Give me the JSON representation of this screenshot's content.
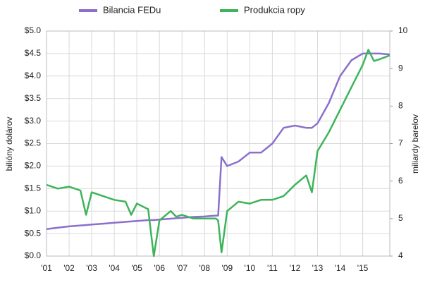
{
  "chart_data": {
    "type": "line",
    "x": [
      2001,
      2001.5,
      2002,
      2002.5,
      2002.75,
      2003,
      2003.5,
      2004,
      2004.5,
      2004.75,
      2005,
      2005.5,
      2005.75,
      2006,
      2006.5,
      2006.75,
      2007,
      2007.5,
      2008,
      2008.5,
      2008.6,
      2008.75,
      2009,
      2009.5,
      2010,
      2010.5,
      2011,
      2011.5,
      2012,
      2012.5,
      2012.75,
      2013,
      2013.5,
      2014,
      2014.5,
      2015,
      2015.25,
      2015.5,
      2015.75,
      2016.2
    ],
    "series": [
      {
        "name": "Bilancia FEDu",
        "color": "#8b6fcb",
        "axis": "y",
        "values": [
          0.6,
          0.63,
          0.66,
          0.68,
          0.69,
          0.7,
          0.72,
          0.74,
          0.76,
          0.77,
          0.78,
          0.8,
          0.8,
          0.81,
          0.83,
          0.84,
          0.85,
          0.87,
          0.88,
          0.9,
          0.9,
          2.2,
          2.0,
          2.1,
          2.3,
          2.3,
          2.5,
          2.85,
          2.9,
          2.85,
          2.85,
          2.95,
          3.4,
          4.0,
          4.35,
          4.5,
          4.5,
          4.5,
          4.5,
          4.48
        ]
      },
      {
        "name": "Produkcia ropy",
        "color": "#3db45a",
        "axis": "y2",
        "values": [
          5.9,
          5.8,
          5.85,
          5.75,
          5.1,
          5.7,
          5.6,
          5.5,
          5.45,
          5.1,
          5.4,
          5.25,
          4.0,
          4.95,
          5.2,
          5.05,
          5.1,
          5.0,
          5.0,
          5.0,
          4.95,
          4.1,
          5.2,
          5.45,
          5.4,
          5.5,
          5.5,
          5.6,
          5.9,
          6.15,
          5.7,
          6.8,
          7.3,
          7.9,
          8.5,
          9.1,
          9.5,
          9.2,
          9.25,
          9.35
        ]
      }
    ],
    "ylabel": "bilióny dolárov",
    "y2label": "miliardy barelov",
    "xlim": [
      2001,
      2016.2
    ],
    "xticks": [
      {
        "value": 2001,
        "label": "'01"
      },
      {
        "value": 2002,
        "label": "'02"
      },
      {
        "value": 2003,
        "label": "'03"
      },
      {
        "value": 2004,
        "label": "'04"
      },
      {
        "value": 2005,
        "label": "'05"
      },
      {
        "value": 2006,
        "label": "'06"
      },
      {
        "value": 2007,
        "label": "'07"
      },
      {
        "value": 2008,
        "label": "'08"
      },
      {
        "value": 2009,
        "label": "'09"
      },
      {
        "value": 2010,
        "label": "'10"
      },
      {
        "value": 2011,
        "label": "'11"
      },
      {
        "value": 2012,
        "label": "'12"
      },
      {
        "value": 2013,
        "label": "'13"
      },
      {
        "value": 2014,
        "label": "'14"
      },
      {
        "value": 2015,
        "label": "'15"
      }
    ],
    "ylim": [
      0,
      5
    ],
    "yticks": [
      {
        "value": 0,
        "label": "$0.0"
      },
      {
        "value": 0.5,
        "label": "$0.5"
      },
      {
        "value": 1,
        "label": "$1.0"
      },
      {
        "value": 1.5,
        "label": "$1.5"
      },
      {
        "value": 2,
        "label": "$2.0"
      },
      {
        "value": 2.5,
        "label": "$2.5"
      },
      {
        "value": 3,
        "label": "$3.0"
      },
      {
        "value": 3.5,
        "label": "$3.5"
      },
      {
        "value": 4,
        "label": "$4.0"
      },
      {
        "value": 4.5,
        "label": "$4.5"
      },
      {
        "value": 5,
        "label": "$5.0"
      }
    ],
    "y2lim": [
      4,
      10
    ],
    "y2ticks": [
      4,
      5,
      6,
      7,
      8,
      9,
      10
    ],
    "grid": true
  }
}
